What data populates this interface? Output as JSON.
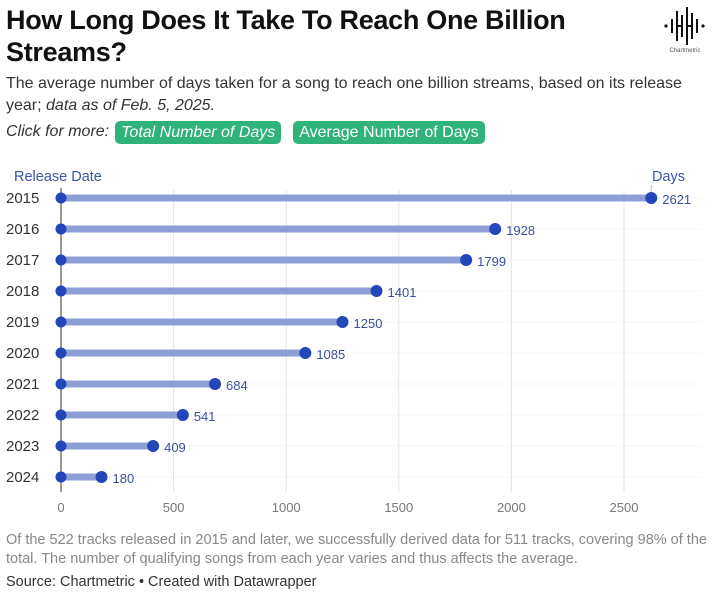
{
  "header": {
    "title": "How Long Does It Take To Reach One Billion Streams?",
    "subtitle_plain": "The average number of days taken for a song to reach one billion streams, based on its release year; ",
    "subtitle_italic": "data as of Feb. 5, 2025.",
    "click_label": "Click for more:",
    "buttons": [
      {
        "label": "Total Number of Days"
      },
      {
        "label": "Average Number of Days"
      }
    ],
    "logo_text": "Chartmetric"
  },
  "colors": {
    "accent_green": "#2fb37a",
    "dot": "#2346b8",
    "stem": "#8e9fd8",
    "label": "#3b4f9e"
  },
  "chart_data": {
    "type": "bar",
    "subtype": "lollipop-horizontal",
    "title": "How Long Does It Take To Reach One Billion Streams?",
    "ylabel": "Release Date",
    "xlabel": "Days",
    "categories": [
      "2015",
      "2016",
      "2017",
      "2018",
      "2019",
      "2020",
      "2021",
      "2022",
      "2023",
      "2024"
    ],
    "values": [
      2621,
      1928,
      1799,
      1401,
      1250,
      1085,
      684,
      541,
      409,
      180
    ],
    "xlim": [
      0,
      2850
    ],
    "xticks": [
      0,
      500,
      1000,
      1500,
      2000,
      2500
    ],
    "grid": true,
    "data_labels": true
  },
  "footer": {
    "note": "Of the 522 tracks released in 2015 and later, we successfully derived data for 511 tracks, covering 98% of the total. The number of qualifying songs from each year varies and thus affects the average.",
    "source": "Source: Chartmetric • Created with Datawrapper"
  }
}
